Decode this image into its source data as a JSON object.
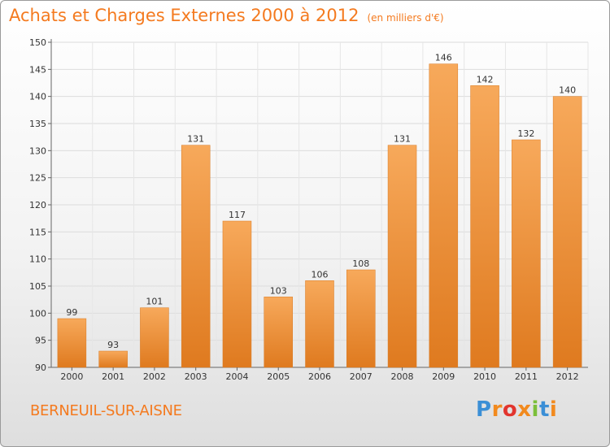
{
  "title": "Achats et Charges Externes 2000 à 2012",
  "subtitle": "(en milliers d'€)",
  "commune": "BERNEUIL-SUR-AISNE",
  "logo": {
    "letters": [
      "P",
      "r",
      "o",
      "x",
      "i",
      "t",
      "i"
    ],
    "colors": [
      "#3b8fd6",
      "#f28a1e",
      "#e2352e",
      "#f28a1e",
      "#7bbf3a",
      "#3b8fd6",
      "#f28a1e"
    ]
  },
  "colors": {
    "bar_top": "#f7a95b",
    "bar_bottom": "#df7a1f",
    "text_accent": "#f47a1f"
  },
  "chart_data": {
    "type": "bar",
    "title": "Achats et Charges Externes 2000 à 2012",
    "subtitle": "(en milliers d'€)",
    "categories": [
      "2000",
      "2001",
      "2002",
      "2003",
      "2004",
      "2005",
      "2006",
      "2007",
      "2008",
      "2009",
      "2010",
      "2011",
      "2012"
    ],
    "values": [
      99,
      93,
      101,
      131,
      117,
      103,
      106,
      108,
      131,
      146,
      142,
      132,
      140
    ],
    "ylim": [
      90,
      150
    ],
    "yticks": [
      90,
      95,
      100,
      105,
      110,
      115,
      120,
      125,
      130,
      135,
      140,
      145,
      150
    ],
    "grid": true
  }
}
